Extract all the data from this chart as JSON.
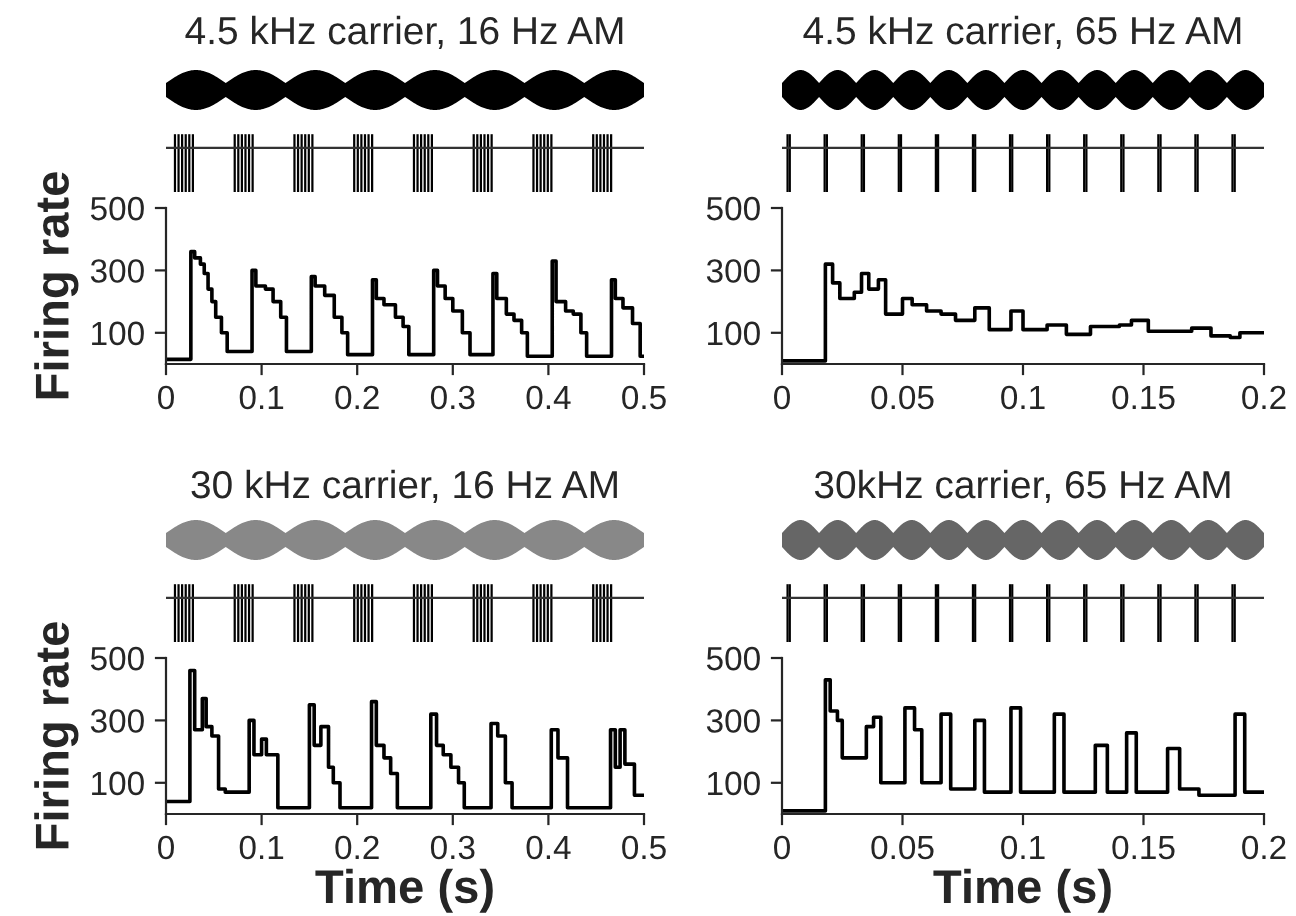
{
  "chart_data": [
    {
      "type": "step",
      "title": "4.5 kHz carrier, 16 Hz AM",
      "ylabel": "Firing rate",
      "xlim": [
        0,
        0.5
      ],
      "xticks": [
        0,
        0.1,
        0.2,
        0.3,
        0.4,
        0.5
      ],
      "ylim": [
        0,
        500
      ],
      "yticks": [
        100,
        300,
        500
      ],
      "grid": false,
      "legend": false,
      "series": [
        {
          "color": "#000000",
          "x": [
            0,
            0.026,
            0.03,
            0.036,
            0.04,
            0.044,
            0.048,
            0.052,
            0.058,
            0.064,
            0.09,
            0.094,
            0.104,
            0.112,
            0.12,
            0.126,
            0.152,
            0.156,
            0.166,
            0.176,
            0.184,
            0.19,
            0.216,
            0.22,
            0.228,
            0.24,
            0.248,
            0.254,
            0.28,
            0.284,
            0.292,
            0.3,
            0.31,
            0.318,
            0.342,
            0.346,
            0.356,
            0.364,
            0.372,
            0.378,
            0.404,
            0.408,
            0.418,
            0.426,
            0.434,
            0.44,
            0.466,
            0.47,
            0.478,
            0.488,
            0.496,
            0.5
          ],
          "values": [
            15,
            360,
            340,
            320,
            290,
            240,
            200,
            150,
            100,
            40,
            300,
            250,
            240,
            200,
            150,
            40,
            280,
            250,
            220,
            150,
            100,
            30,
            270,
            210,
            190,
            150,
            120,
            30,
            300,
            250,
            210,
            170,
            100,
            30,
            290,
            210,
            160,
            140,
            100,
            25,
            330,
            200,
            170,
            160,
            100,
            25,
            270,
            210,
            180,
            130,
            25,
            25
          ]
        }
      ]
    },
    {
      "type": "step",
      "title": "4.5 kHz carrier, 65 Hz AM",
      "xlim": [
        0,
        0.2
      ],
      "xticks": [
        0,
        0.05,
        0.1,
        0.15,
        0.2
      ],
      "ylim": [
        0,
        500
      ],
      "yticks": [
        100,
        300,
        500
      ],
      "grid": false,
      "legend": false,
      "series": [
        {
          "color": "#000000",
          "x": [
            0,
            0.018,
            0.021,
            0.024,
            0.03,
            0.033,
            0.036,
            0.04,
            0.043,
            0.05,
            0.054,
            0.06,
            0.066,
            0.072,
            0.08,
            0.086,
            0.095,
            0.1,
            0.11,
            0.118,
            0.128,
            0.14,
            0.145,
            0.152,
            0.17,
            0.178,
            0.186,
            0.19,
            0.2
          ],
          "values": [
            10,
            320,
            260,
            210,
            230,
            290,
            240,
            270,
            160,
            210,
            190,
            170,
            160,
            140,
            180,
            110,
            170,
            110,
            125,
            95,
            120,
            125,
            140,
            105,
            115,
            90,
            85,
            100,
            100
          ]
        }
      ]
    },
    {
      "type": "step",
      "title": "30 kHz carrier, 16 Hz AM",
      "ylabel": "Firing rate",
      "xlabel": "Time (s)",
      "xlim": [
        0,
        0.5
      ],
      "xticks": [
        0,
        0.1,
        0.2,
        0.3,
        0.4,
        0.5
      ],
      "ylim": [
        0,
        500
      ],
      "yticks": [
        100,
        300,
        500
      ],
      "grid": false,
      "legend": false,
      "series": [
        {
          "color": "#000000",
          "x": [
            0,
            0.025,
            0.03,
            0.038,
            0.042,
            0.048,
            0.055,
            0.062,
            0.087,
            0.092,
            0.1,
            0.105,
            0.117,
            0.15,
            0.155,
            0.162,
            0.17,
            0.175,
            0.182,
            0.215,
            0.22,
            0.228,
            0.235,
            0.242,
            0.277,
            0.283,
            0.29,
            0.298,
            0.306,
            0.312,
            0.34,
            0.347,
            0.355,
            0.362,
            0.403,
            0.41,
            0.42,
            0.465,
            0.47,
            0.475,
            0.48,
            0.49,
            0.5
          ],
          "values": [
            40,
            460,
            270,
            370,
            280,
            250,
            80,
            70,
            300,
            190,
            240,
            190,
            20,
            350,
            220,
            280,
            150,
            100,
            20,
            360,
            220,
            180,
            130,
            20,
            320,
            220,
            190,
            150,
            100,
            20,
            290,
            250,
            100,
            20,
            270,
            180,
            20,
            270,
            150,
            270,
            160,
            60,
            60
          ]
        }
      ]
    },
    {
      "type": "step",
      "title": "30kHz carrier, 65 Hz AM",
      "xlabel": "Time (s)",
      "xlim": [
        0,
        0.2
      ],
      "xticks": [
        0,
        0.05,
        0.1,
        0.15,
        0.2
      ],
      "ylim": [
        0,
        500
      ],
      "yticks": [
        100,
        300,
        500
      ],
      "grid": false,
      "legend": false,
      "series": [
        {
          "color": "#000000",
          "x": [
            0,
            0.018,
            0.02,
            0.023,
            0.025,
            0.035,
            0.038,
            0.041,
            0.051,
            0.055,
            0.058,
            0.066,
            0.07,
            0.08,
            0.084,
            0.095,
            0.099,
            0.113,
            0.117,
            0.13,
            0.135,
            0.143,
            0.147,
            0.16,
            0.165,
            0.173,
            0.188,
            0.192,
            0.2
          ],
          "values": [
            10,
            430,
            330,
            300,
            180,
            280,
            310,
            100,
            340,
            270,
            100,
            320,
            80,
            300,
            70,
            340,
            70,
            320,
            70,
            220,
            70,
            260,
            70,
            210,
            80,
            60,
            320,
            70,
            70
          ]
        }
      ]
    }
  ]
}
